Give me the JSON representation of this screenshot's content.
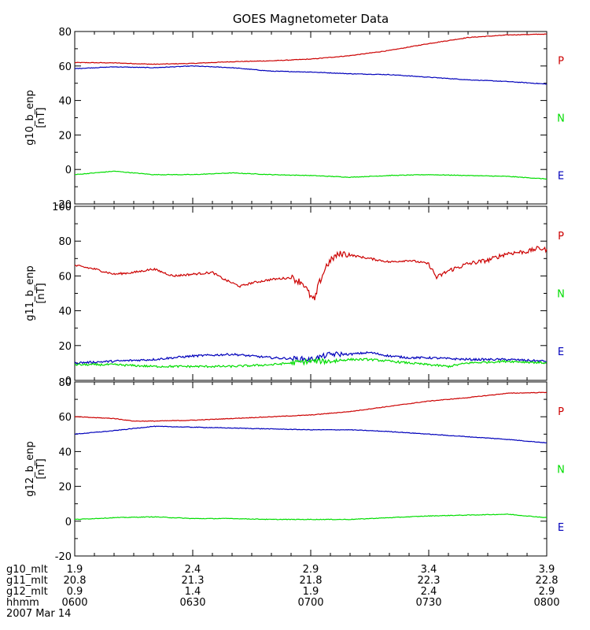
{
  "chart_data": {
    "type": "line",
    "title": "GOES Magnetometer Data",
    "x": {
      "range_hhmm_minutes": [
        0,
        120
      ],
      "tick_minutes": [
        0,
        30,
        60,
        90,
        120
      ],
      "rows": [
        {
          "name": "g10_mlt",
          "values": [
            "1.9",
            "2.4",
            "2.9",
            "3.4",
            "3.9"
          ]
        },
        {
          "name": "g11_mlt",
          "values": [
            "20.8",
            "21.3",
            "21.8",
            "22.3",
            "22.8"
          ]
        },
        {
          "name": "g12_mlt",
          "values": [
            "0.9",
            "1.4",
            "1.9",
            "2.4",
            "2.9"
          ]
        },
        {
          "name": "hhmm",
          "values": [
            "0600",
            "0630",
            "0700",
            "0730",
            "0800"
          ]
        }
      ],
      "date": "2007 Mar 14"
    },
    "colors": {
      "P": "#cc0000",
      "N": "#00dd00",
      "E": "#0000bb"
    },
    "panels": [
      {
        "ylabel": "g10_b_enp",
        "yunit": "[nT]",
        "ylim": [
          -20,
          80
        ],
        "yticks": [
          -20,
          0,
          20,
          40,
          60,
          80
        ],
        "legend": [
          "P",
          "N",
          "E"
        ],
        "series": [
          {
            "name": "P",
            "points": [
              [
                0,
                62
              ],
              [
                10,
                61.8
              ],
              [
                20,
                61
              ],
              [
                30,
                61.5
              ],
              [
                40,
                62.5
              ],
              [
                50,
                63
              ],
              [
                60,
                64
              ],
              [
                70,
                66
              ],
              [
                80,
                69
              ],
              [
                90,
                73
              ],
              [
                100,
                76.5
              ],
              [
                110,
                78
              ],
              [
                120,
                78.5
              ]
            ]
          },
          {
            "name": "E",
            "points": [
              [
                0,
                58.5
              ],
              [
                10,
                59.5
              ],
              [
                20,
                59
              ],
              [
                30,
                60
              ],
              [
                40,
                59
              ],
              [
                50,
                57
              ],
              [
                60,
                56.5
              ],
              [
                70,
                55.5
              ],
              [
                80,
                55
              ],
              [
                90,
                53.5
              ],
              [
                100,
                52
              ],
              [
                110,
                51
              ],
              [
                120,
                49.5
              ]
            ]
          },
          {
            "name": "N",
            "points": [
              [
                0,
                -3
              ],
              [
                10,
                -1
              ],
              [
                20,
                -3
              ],
              [
                30,
                -3
              ],
              [
                40,
                -2
              ],
              [
                50,
                -3
              ],
              [
                60,
                -3.5
              ],
              [
                70,
                -4.5
              ],
              [
                80,
                -3.5
              ],
              [
                90,
                -3
              ],
              [
                100,
                -3.5
              ],
              [
                110,
                -4
              ],
              [
                120,
                -5.5
              ]
            ]
          }
        ]
      },
      {
        "ylabel": "g11_b_enp",
        "yunit": "[nT]",
        "ylim": [
          0,
          100
        ],
        "yticks": [
          0,
          20,
          40,
          60,
          80,
          100
        ],
        "legend": [
          "P",
          "N",
          "E"
        ],
        "series": [
          {
            "name": "P",
            "points": [
              [
                0,
                66
              ],
              [
                5,
                64
              ],
              [
                10,
                61
              ],
              [
                15,
                62
              ],
              [
                20,
                64
              ],
              [
                25,
                60
              ],
              [
                30,
                61
              ],
              [
                35,
                62
              ],
              [
                38,
                58
              ],
              [
                42,
                54
              ],
              [
                45,
                56
              ],
              [
                50,
                58
              ],
              [
                55,
                59
              ],
              [
                58,
                56
              ],
              [
                60,
                48
              ],
              [
                61,
                46
              ],
              [
                62,
                55
              ],
              [
                64,
                66
              ],
              [
                66,
                71
              ],
              [
                68,
                73
              ],
              [
                70,
                72
              ],
              [
                75,
                70
              ],
              [
                80,
                68
              ],
              [
                85,
                69
              ],
              [
                90,
                67
              ],
              [
                92,
                59
              ],
              [
                95,
                63
              ],
              [
                100,
                67
              ],
              [
                105,
                69
              ],
              [
                110,
                73
              ],
              [
                115,
                74
              ],
              [
                118,
                76
              ],
              [
                120,
                75
              ]
            ]
          },
          {
            "name": "E",
            "points": [
              [
                0,
                10
              ],
              [
                10,
                11
              ],
              [
                20,
                12
              ],
              [
                30,
                14
              ],
              [
                40,
                15
              ],
              [
                50,
                13
              ],
              [
                60,
                12
              ],
              [
                65,
                15
              ],
              [
                70,
                15
              ],
              [
                75,
                16
              ],
              [
                80,
                14
              ],
              [
                85,
                13
              ],
              [
                90,
                13
              ],
              [
                100,
                12
              ],
              [
                110,
                12
              ],
              [
                120,
                11
              ]
            ]
          },
          {
            "name": "N",
            "points": [
              [
                0,
                9
              ],
              [
                10,
                9
              ],
              [
                20,
                8
              ],
              [
                30,
                8
              ],
              [
                40,
                8
              ],
              [
                50,
                9
              ],
              [
                60,
                11
              ],
              [
                65,
                11
              ],
              [
                70,
                12
              ],
              [
                75,
                12
              ],
              [
                80,
                11
              ],
              [
                85,
                10
              ],
              [
                90,
                9
              ],
              [
                95,
                8
              ],
              [
                100,
                10
              ],
              [
                110,
                11
              ],
              [
                120,
                10
              ]
            ]
          }
        ]
      },
      {
        "ylabel": "g12_b_enp",
        "yunit": "[nT]",
        "ylim": [
          -20,
          80
        ],
        "yticks": [
          -20,
          0,
          20,
          40,
          60,
          80
        ],
        "legend": [
          "P",
          "N",
          "E"
        ],
        "series": [
          {
            "name": "P",
            "points": [
              [
                0,
                60
              ],
              [
                10,
                59
              ],
              [
                15,
                57.5
              ],
              [
                20,
                57.5
              ],
              [
                30,
                58
              ],
              [
                40,
                59
              ],
              [
                50,
                60
              ],
              [
                60,
                61
              ],
              [
                70,
                63
              ],
              [
                80,
                66
              ],
              [
                90,
                69
              ],
              [
                100,
                71
              ],
              [
                110,
                73.5
              ],
              [
                120,
                74
              ]
            ]
          },
          {
            "name": "E",
            "points": [
              [
                0,
                50
              ],
              [
                10,
                52
              ],
              [
                20,
                54.5
              ],
              [
                30,
                54
              ],
              [
                40,
                53.5
              ],
              [
                50,
                53
              ],
              [
                60,
                52.5
              ],
              [
                70,
                52.5
              ],
              [
                80,
                51.5
              ],
              [
                90,
                50
              ],
              [
                100,
                48.5
              ],
              [
                110,
                47
              ],
              [
                120,
                45
              ]
            ]
          },
          {
            "name": "N",
            "points": [
              [
                0,
                1
              ],
              [
                10,
                2
              ],
              [
                20,
                2.5
              ],
              [
                30,
                1.5
              ],
              [
                40,
                1.5
              ],
              [
                50,
                1
              ],
              [
                60,
                1
              ],
              [
                70,
                1
              ],
              [
                80,
                2
              ],
              [
                90,
                3
              ],
              [
                100,
                3.5
              ],
              [
                110,
                4
              ],
              [
                120,
                2
              ]
            ]
          }
        ]
      }
    ]
  }
}
